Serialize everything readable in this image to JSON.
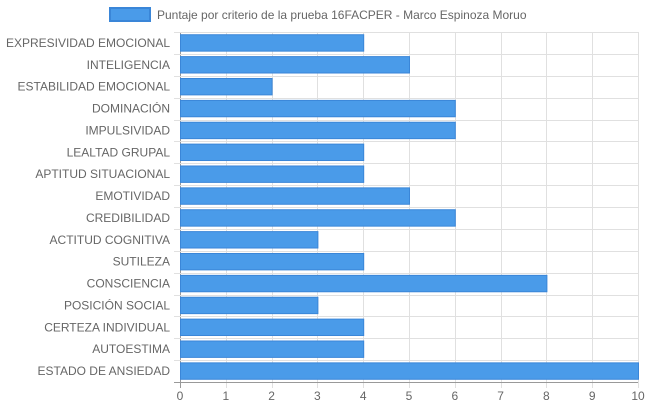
{
  "chart_data": {
    "type": "bar",
    "orientation": "horizontal",
    "categories": [
      "EXPRESIVIDAD EMOCIONAL",
      "INTELIGENCIA",
      "ESTABILIDAD EMOCIONAL",
      "DOMINACIÓN",
      "IMPULSIVIDAD",
      "LEALTAD GRUPAL",
      "APTITUD SITUACIONAL",
      "EMOTIVIDAD",
      "CREDIBILIDAD",
      "ACTITUD COGNITIVA",
      "SUTILEZA",
      "CONSCIENCIA",
      "POSICIÓN SOCIAL",
      "CERTEZA INDIVIDUAL",
      "AUTOESTIMA",
      "ESTADO DE ANSIEDAD"
    ],
    "series": [
      {
        "name": "Puntaje por criterio de la prueba 16FACPER - Marco Espinoza Moruo",
        "values": [
          4,
          5,
          2,
          6,
          6,
          4,
          4,
          5,
          6,
          3,
          4,
          8,
          3,
          4,
          4,
          10
        ]
      }
    ],
    "xlim": [
      0,
      10
    ],
    "x_ticks": [
      "0",
      "1",
      "2",
      "3",
      "4",
      "5",
      "6",
      "7",
      "8",
      "9",
      "10"
    ],
    "grid": true,
    "legend": "top",
    "colors": {
      "bar_fill": "#4a9be9",
      "bar_stroke": "#3a86d8",
      "grid": "#e0e0e0",
      "axis": "#999999",
      "text": "#666666"
    }
  }
}
